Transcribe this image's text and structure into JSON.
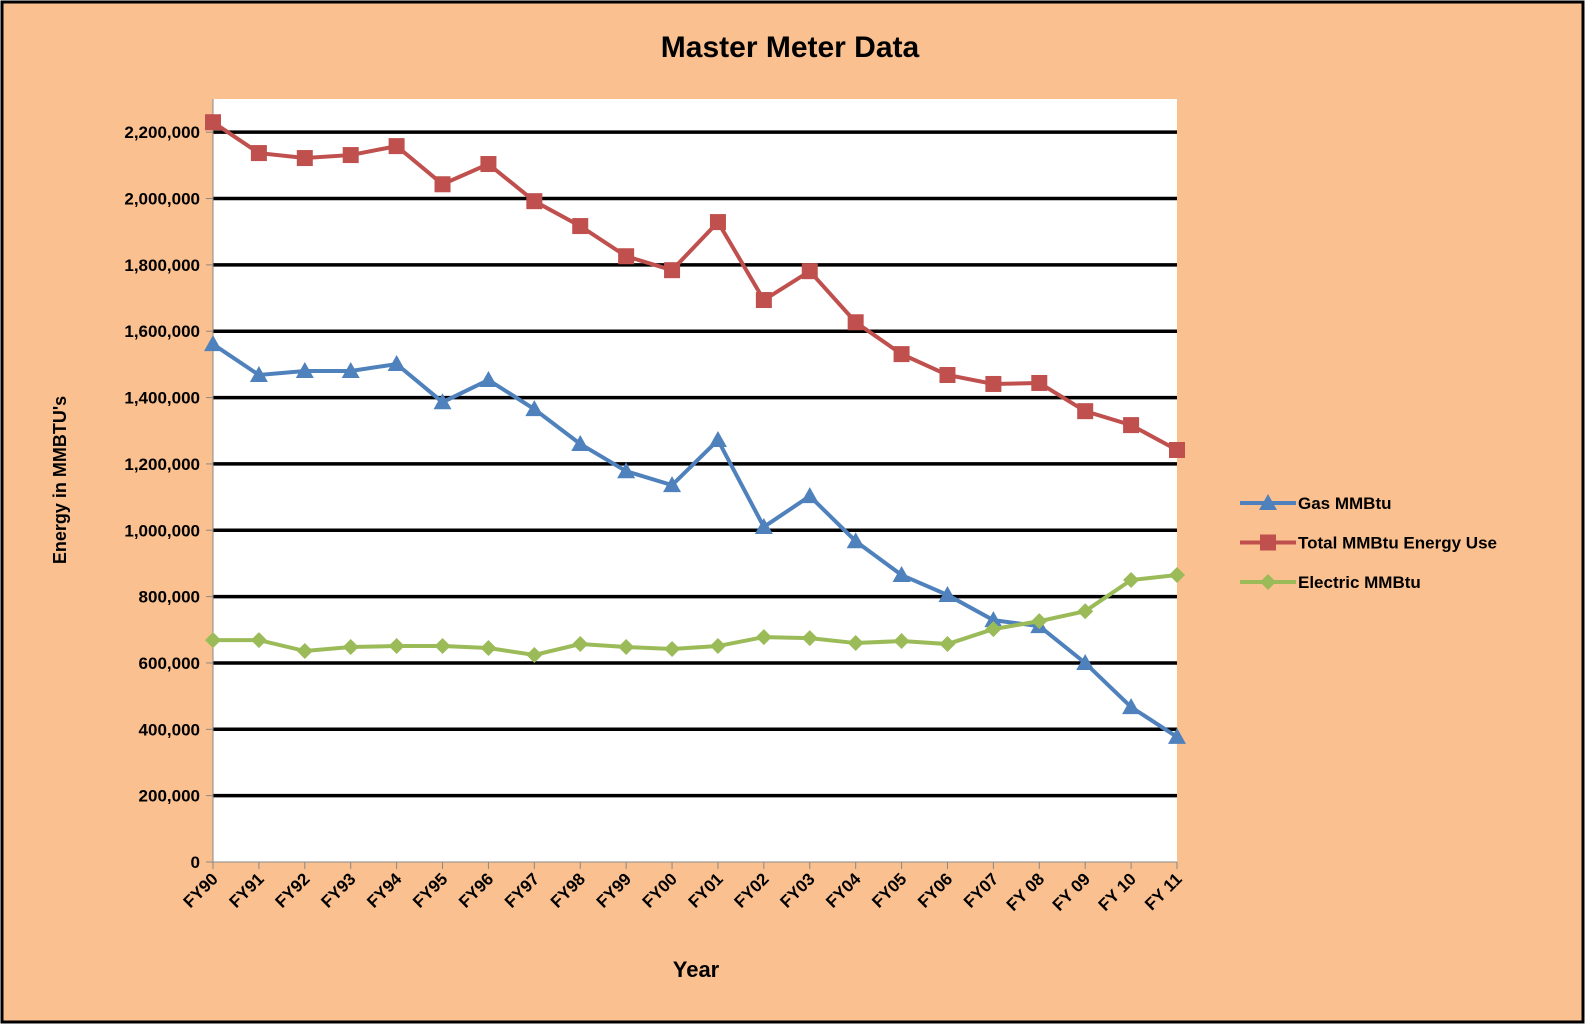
{
  "chart_data": {
    "type": "line",
    "title": "Master Meter Data",
    "x_label": "Year",
    "y_label": "Energy in MMBTU's",
    "categories": [
      "FY90",
      "FY91",
      "FY92",
      "FY93",
      "FY94",
      "FY95",
      "FY96",
      "FY97",
      "FY98",
      "FY99",
      "FY00",
      "FY01",
      "FY02",
      "FY03",
      "FY04",
      "FY05",
      "FY06",
      "FY07",
      "FY 08",
      "FY 09",
      "FY 10",
      "FY 11"
    ],
    "series": [
      {
        "name": "Gas MMBtu",
        "color": "#4F81BD",
        "marker": "triangle",
        "values": [
          1561000,
          1468000,
          1480000,
          1480000,
          1501000,
          1386000,
          1453000,
          1365000,
          1260000,
          1178000,
          1136000,
          1272000,
          1010000,
          1103000,
          967000,
          865000,
          805000,
          729000,
          711000,
          600000,
          467000,
          377000
        ]
      },
      {
        "name": "Total MMBtu Energy Use",
        "color": "#C0504D",
        "marker": "square",
        "values": [
          2230000,
          2137000,
          2122000,
          2131000,
          2158000,
          2043000,
          2104000,
          1992000,
          1917000,
          1826000,
          1784000,
          1929000,
          1694000,
          1781000,
          1627000,
          1531000,
          1468000,
          1441000,
          1444000,
          1359000,
          1317000,
          1242000
        ]
      },
      {
        "name": "Electric MMBtu",
        "color": "#9BBB59",
        "marker": "diamond",
        "values": [
          669000,
          669000,
          636000,
          648000,
          651000,
          651000,
          645000,
          624000,
          657000,
          648000,
          642000,
          651000,
          678000,
          675000,
          660000,
          666000,
          657000,
          702000,
          726000,
          756000,
          850000,
          865000
        ]
      }
    ],
    "ylim": [
      0,
      2300000
    ],
    "yticks": [
      0,
      {
        "value": 200000,
        "label": "200,000"
      },
      {
        "value": 400000,
        "label": "400,000"
      },
      {
        "value": 600000,
        "label": "600,000"
      },
      {
        "value": 800000,
        "label": "800,000"
      },
      {
        "value": 1000000,
        "label": "1,000,000"
      },
      {
        "value": 1200000,
        "label": "1,200,000"
      },
      {
        "value": 1400000,
        "label": "1,400,000"
      },
      {
        "value": 1600000,
        "label": "1,600,000"
      },
      {
        "value": 1800000,
        "label": "1,800,000"
      },
      {
        "value": 2000000,
        "label": "2,000,000"
      },
      {
        "value": 2200000,
        "label": "2,200,000"
      }
    ],
    "grid": true,
    "legend": "right",
    "background": "#FAC090"
  }
}
